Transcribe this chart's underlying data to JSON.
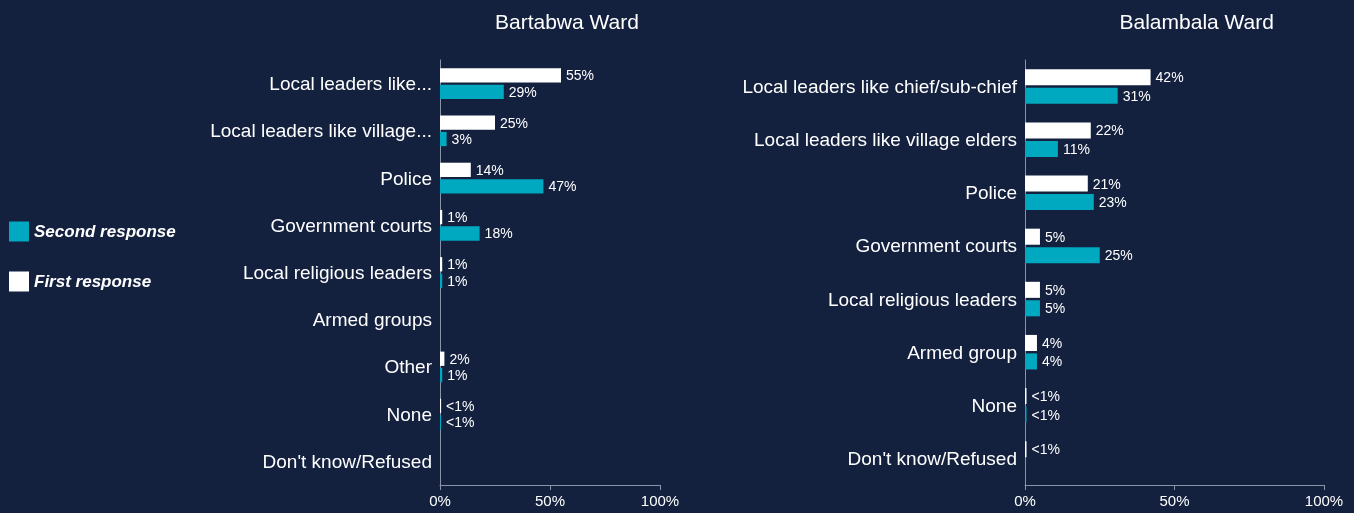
{
  "chart_data": [
    {
      "type": "bar",
      "orientation": "horizontal",
      "title": "Bartabwa Ward",
      "legend": "left",
      "grid": false,
      "categories": [
        "Local leaders like...",
        "Local leaders like village...",
        "Police",
        "Government courts",
        "Local religious leaders",
        "Armed groups",
        "Other",
        "None",
        "Don't know/Refused"
      ],
      "xlim": [
        0,
        100
      ],
      "xticks": [
        {
          "value": 0,
          "label": "0%"
        },
        {
          "value": 50,
          "label": "50%"
        },
        {
          "value": 100,
          "label": "100%"
        }
      ],
      "series": [
        {
          "name": "First response",
          "color": "#ffffff",
          "values": [
            55,
            25,
            14,
            1,
            1,
            null,
            2,
            0.5,
            null
          ],
          "value_labels": [
            "55%",
            "25%",
            "14%",
            "1%",
            "1%",
            null,
            "2%",
            "<1%",
            null
          ]
        },
        {
          "name": "Second response",
          "color": "#00a9c0",
          "values": [
            29,
            3,
            47,
            18,
            1,
            null,
            1,
            0.5,
            null
          ],
          "value_labels": [
            "29%",
            "3%",
            "47%",
            "18%",
            "1%",
            null,
            "1%",
            "<1%",
            null
          ]
        }
      ]
    },
    {
      "type": "bar",
      "orientation": "horizontal",
      "title": "Balambala Ward",
      "grid": false,
      "categories": [
        "Local leaders like chief/sub-chief",
        "Local leaders like village elders",
        "Police",
        "Government courts",
        "Local religious leaders",
        "Armed group",
        "None",
        "Don't know/Refused"
      ],
      "xlim": [
        0,
        100
      ],
      "xticks": [
        {
          "value": 0,
          "label": "0%"
        },
        {
          "value": 50,
          "label": "50%"
        },
        {
          "value": 100,
          "label": "100%"
        }
      ],
      "series": [
        {
          "color": "#ffffff",
          "values": [
            42,
            22,
            21,
            5,
            5,
            4,
            0.5,
            0.5
          ],
          "value_labels": [
            "42%",
            "22%",
            "21%",
            "5%",
            "5%",
            "4%",
            "<1%",
            "<1%"
          ]
        },
        {
          "color": "#00a9c0",
          "values": [
            31,
            11,
            23,
            25,
            5,
            4,
            0.5,
            null
          ],
          "value_labels": [
            "31%",
            "11%",
            "23%",
            "25%",
            "5%",
            "4%",
            "<1%",
            null
          ]
        }
      ]
    }
  ]
}
